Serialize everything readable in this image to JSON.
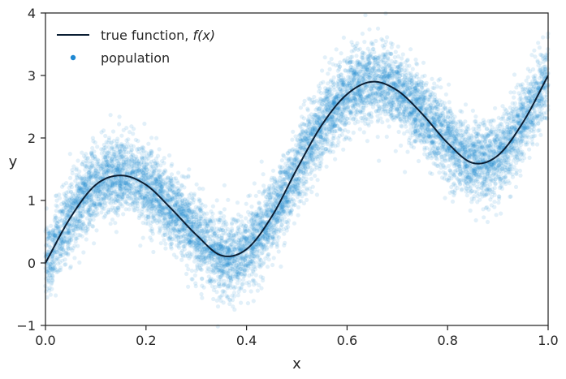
{
  "chart_data": {
    "type": "scatter",
    "xlabel": "x",
    "ylabel": "y",
    "xlim": [
      0,
      1
    ],
    "ylim": [
      -1,
      4
    ],
    "xticks": [
      0,
      0.2,
      0.4,
      0.6,
      0.8,
      1.0
    ],
    "xtick_labels": [
      "0.0",
      "0.2",
      "0.4",
      "0.6",
      "0.8",
      "1.0"
    ],
    "yticks": [
      -1,
      0,
      1,
      2,
      3,
      4
    ],
    "ytick_labels": [
      "−1",
      "0",
      "1",
      "2",
      "3",
      "4"
    ],
    "grid": false,
    "legend_position": "top-left",
    "series": [
      {
        "name": "true function, f(x)",
        "type": "line",
        "color": "#0b1e33",
        "x": [
          0.0,
          0.05,
          0.1,
          0.15,
          0.2,
          0.25,
          0.3,
          0.35,
          0.4,
          0.45,
          0.5,
          0.55,
          0.6,
          0.65,
          0.7,
          0.75,
          0.8,
          0.85,
          0.9,
          0.95,
          1.0
        ],
        "y": [
          0.0,
          0.73,
          1.25,
          1.4,
          1.25,
          0.87,
          0.45,
          0.12,
          0.22,
          0.74,
          1.5,
          2.21,
          2.7,
          2.9,
          2.76,
          2.38,
          1.92,
          1.6,
          1.72,
          2.25,
          3.0
        ]
      },
      {
        "name": "population",
        "type": "scatter",
        "color": "#1f88d2",
        "noise_sd": 0.3,
        "n_points": 9000
      }
    ]
  },
  "legend": {
    "line_label": "true function, ",
    "line_label_math": "f(x)",
    "points_label": "population"
  }
}
